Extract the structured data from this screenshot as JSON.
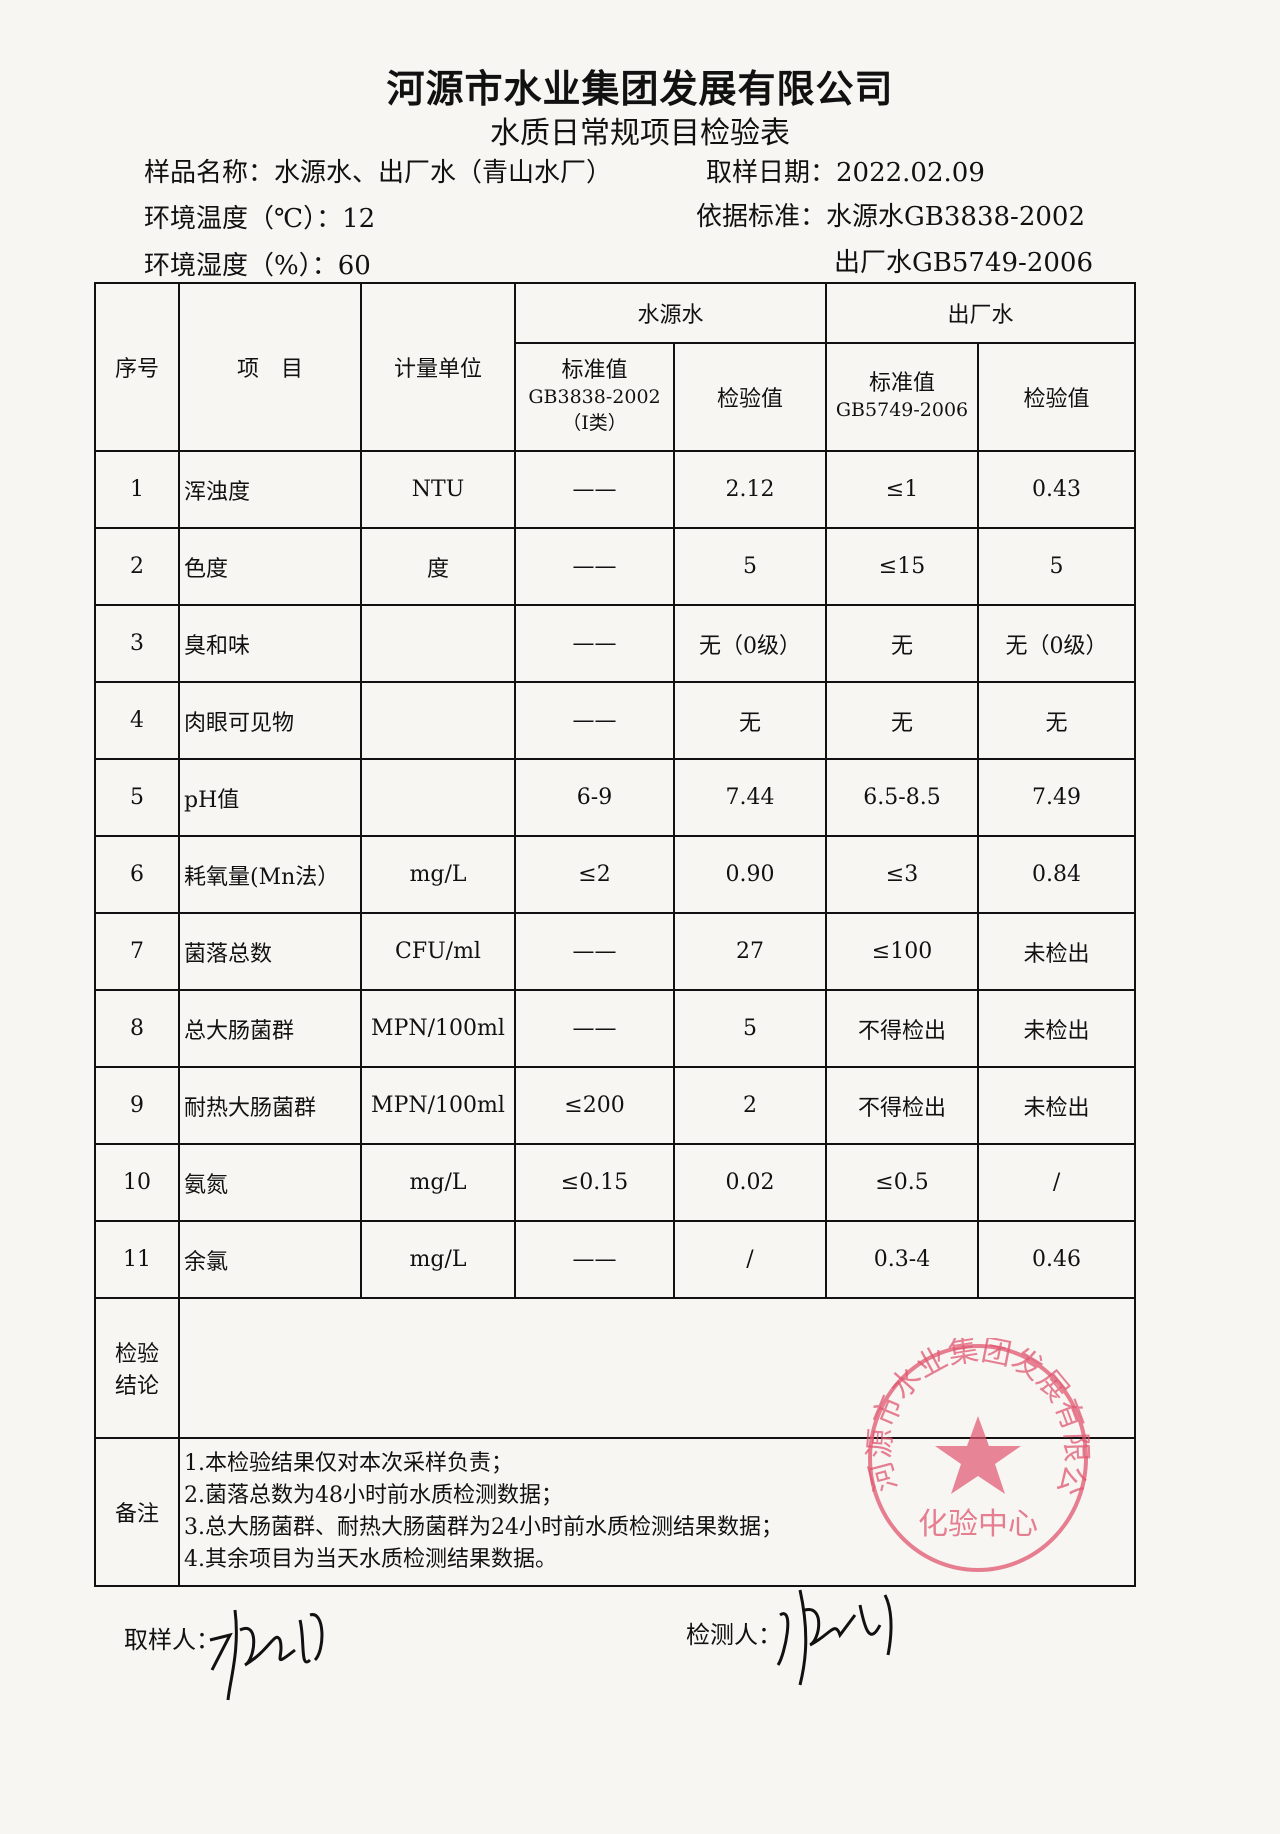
{
  "header": {
    "company": "河源市水业集团发展有限公司",
    "form_title": "水质日常规项目检验表",
    "sample_name": "样品名称：水源水、出厂水（青山水厂）",
    "sample_date": "取样日期：2022.02.09",
    "temperature": "环境温度（℃）：12",
    "humidity": "环境湿度（%）：60",
    "standard_1": "依据标准：水源水GB3838-2002",
    "standard_2": "出厂水GB5749-2006"
  },
  "table": {
    "col_no": "序号",
    "col_item": "项　目",
    "col_unit": "计量单位",
    "group_source": "水源水",
    "group_plant": "出厂水",
    "source_std": "标准值",
    "source_std_code": "GB3838-2002",
    "source_std_class": "（Ⅰ类）",
    "source_val": "检验值",
    "plant_std": "标准值",
    "plant_std_code": "GB5749-2006",
    "plant_val": "检验值",
    "rows": [
      {
        "no": "1",
        "item": "浑浊度",
        "unit": "NTU",
        "src_std": "——",
        "src_val": "2.12",
        "plt_std": "≤1",
        "plt_val": "0.43"
      },
      {
        "no": "2",
        "item": "色度",
        "unit": "度",
        "src_std": "——",
        "src_val": "5",
        "plt_std": "≤15",
        "plt_val": "5"
      },
      {
        "no": "3",
        "item": "臭和味",
        "unit": "",
        "src_std": "——",
        "src_val": "无（0级）",
        "plt_std": "无",
        "plt_val": "无（0级）"
      },
      {
        "no": "4",
        "item": "肉眼可见物",
        "unit": "",
        "src_std": "——",
        "src_val": "无",
        "plt_std": "无",
        "plt_val": "无"
      },
      {
        "no": "5",
        "item": "pH值",
        "unit": "",
        "src_std": "6-9",
        "src_val": "7.44",
        "plt_std": "6.5-8.5",
        "plt_val": "7.49"
      },
      {
        "no": "6",
        "item": "耗氧量(Mn法）",
        "unit": "mg/L",
        "src_std": "≤2",
        "src_val": "0.90",
        "plt_std": "≤3",
        "plt_val": "0.84"
      },
      {
        "no": "7",
        "item": "菌落总数",
        "unit": "CFU/ml",
        "src_std": "——",
        "src_val": "27",
        "plt_std": "≤100",
        "plt_val": "未检出"
      },
      {
        "no": "8",
        "item": "总大肠菌群",
        "unit": "MPN/100ml",
        "src_std": "——",
        "src_val": "5",
        "plt_std": "不得检出",
        "plt_val": "未检出"
      },
      {
        "no": "9",
        "item": "耐热大肠菌群",
        "unit": "MPN/100ml",
        "src_std": "≤200",
        "src_val": "2",
        "plt_std": "不得检出",
        "plt_val": "未检出"
      },
      {
        "no": "10",
        "item": "氨氮",
        "unit": "mg/L",
        "src_std": "≤0.15",
        "src_val": "0.02",
        "plt_std": "≤0.5",
        "plt_val": "/"
      },
      {
        "no": "11",
        "item": "余氯",
        "unit": "mg/L",
        "src_std": "——",
        "src_val": "/",
        "plt_std": "0.3-4",
        "plt_val": "0.46"
      }
    ],
    "conclusion_label_1": "检验",
    "conclusion_label_2": "结论",
    "remarks_label": "备注",
    "remarks": [
      "1.本检验结果仅对本次采样负责；",
      "2.菌落总数为48小时前水质检测数据；",
      "3.总大肠菌群、耐热大肠菌群为24小时前水质检测结果数据；",
      "4.其余项目为当天水质检测结果数据。"
    ]
  },
  "stamp": {
    "text_outer": "河源市水业集团发展有限公司",
    "text_inner": "化验中心",
    "color": "#e0566f"
  },
  "footer": {
    "sampler_label": "取样人：",
    "tester_label": "检测人："
  }
}
